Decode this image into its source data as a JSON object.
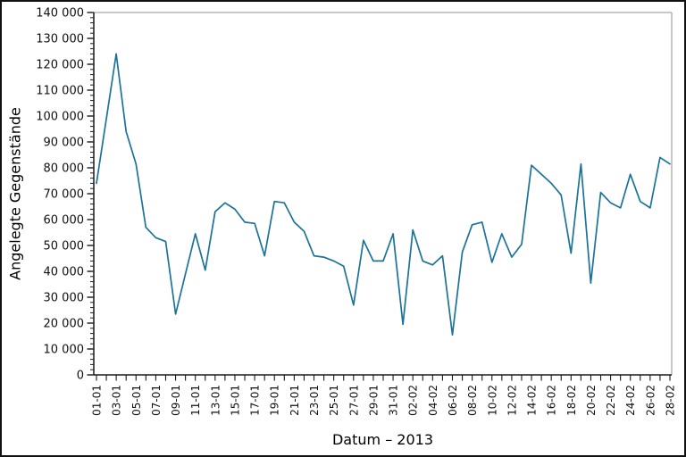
{
  "chart_data": {
    "type": "line",
    "title": "",
    "xlabel": "Datum – 2013",
    "ylabel": "Angelegte Gegenstände",
    "x_dates": [
      "01-01",
      "02-01",
      "03-01",
      "04-01",
      "05-01",
      "06-01",
      "07-01",
      "08-01",
      "09-01",
      "10-01",
      "11-01",
      "12-01",
      "13-01",
      "14-01",
      "15-01",
      "16-01",
      "17-01",
      "18-01",
      "19-01",
      "20-01",
      "21-01",
      "22-01",
      "23-01",
      "24-01",
      "25-01",
      "26-01",
      "27-01",
      "28-01",
      "29-01",
      "30-01",
      "31-01",
      "01-02",
      "02-02",
      "03-02",
      "04-02",
      "05-02",
      "06-02",
      "07-02",
      "08-02",
      "09-02",
      "10-02",
      "11-02",
      "12-02",
      "13-02",
      "14-02",
      "15-02",
      "16-02",
      "17-02",
      "18-02",
      "19-02",
      "20-02",
      "21-02",
      "22-02",
      "23-02",
      "24-02",
      "25-02",
      "26-02",
      "27-02",
      "28-02"
    ],
    "values": [
      74000,
      99000,
      124000,
      94000,
      81500,
      57000,
      53000,
      51500,
      23500,
      39000,
      54500,
      40500,
      63000,
      66500,
      64000,
      59000,
      58500,
      46000,
      67000,
      66500,
      59000,
      55500,
      46000,
      45500,
      44000,
      42000,
      27000,
      52000,
      44000,
      44000,
      54500,
      19500,
      56000,
      44000,
      42500,
      46000,
      15500,
      47500,
      58000,
      59000,
      43500,
      54500,
      45500,
      50500,
      81000,
      77500,
      74000,
      69500,
      47000,
      81500,
      35500,
      70500,
      66500,
      64500,
      77500,
      67000,
      64500,
      84000,
      81500
    ],
    "x_label_every": 2,
    "ylim": [
      0,
      140000
    ],
    "ytick_step": 10000,
    "ytick_minor_step": 2000,
    "y_tick_labels": [
      "0",
      "10 000",
      "20 000",
      "30 000",
      "40 000",
      "50 000",
      "60 000",
      "70 000",
      "80 000",
      "90 000",
      "100 000",
      "110 000",
      "120 000",
      "130 000",
      "140 000"
    ],
    "line_color": "#1b7399",
    "grid": false,
    "legend": null
  }
}
